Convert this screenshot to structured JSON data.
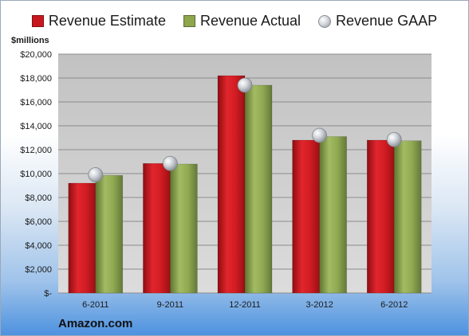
{
  "chart_data": {
    "type": "bar",
    "categories": [
      "6-2011",
      "9-2011",
      "12-2011",
      "3-2012",
      "6-2012"
    ],
    "series": [
      {
        "name": "Revenue Estimate",
        "values": [
          9200,
          10850,
          18200,
          12800,
          12800
        ],
        "color": "#c8181f"
      },
      {
        "name": "Revenue Actual",
        "values": [
          9850,
          10800,
          17400,
          13100,
          12750
        ],
        "color": "#8ea64e"
      },
      {
        "name": "Revenue GAAP",
        "values": [
          9900,
          10850,
          17400,
          13200,
          12850
        ],
        "marker": "sphere",
        "color": "#c0c4ca"
      }
    ],
    "ylabel": "$millions",
    "ylim": [
      0,
      20000
    ],
    "yticks": [
      0,
      2000,
      4000,
      6000,
      8000,
      10000,
      12000,
      14000,
      16000,
      18000,
      20000
    ],
    "ytick_labels": [
      "$-",
      "$2,000",
      "$4,000",
      "$6,000",
      "$8,000",
      "$10,000",
      "$12,000",
      "$14,000",
      "$16,000",
      "$18,000",
      "$20,000"
    ],
    "legend": "top",
    "grid": true,
    "footer": "Amazon.com"
  }
}
